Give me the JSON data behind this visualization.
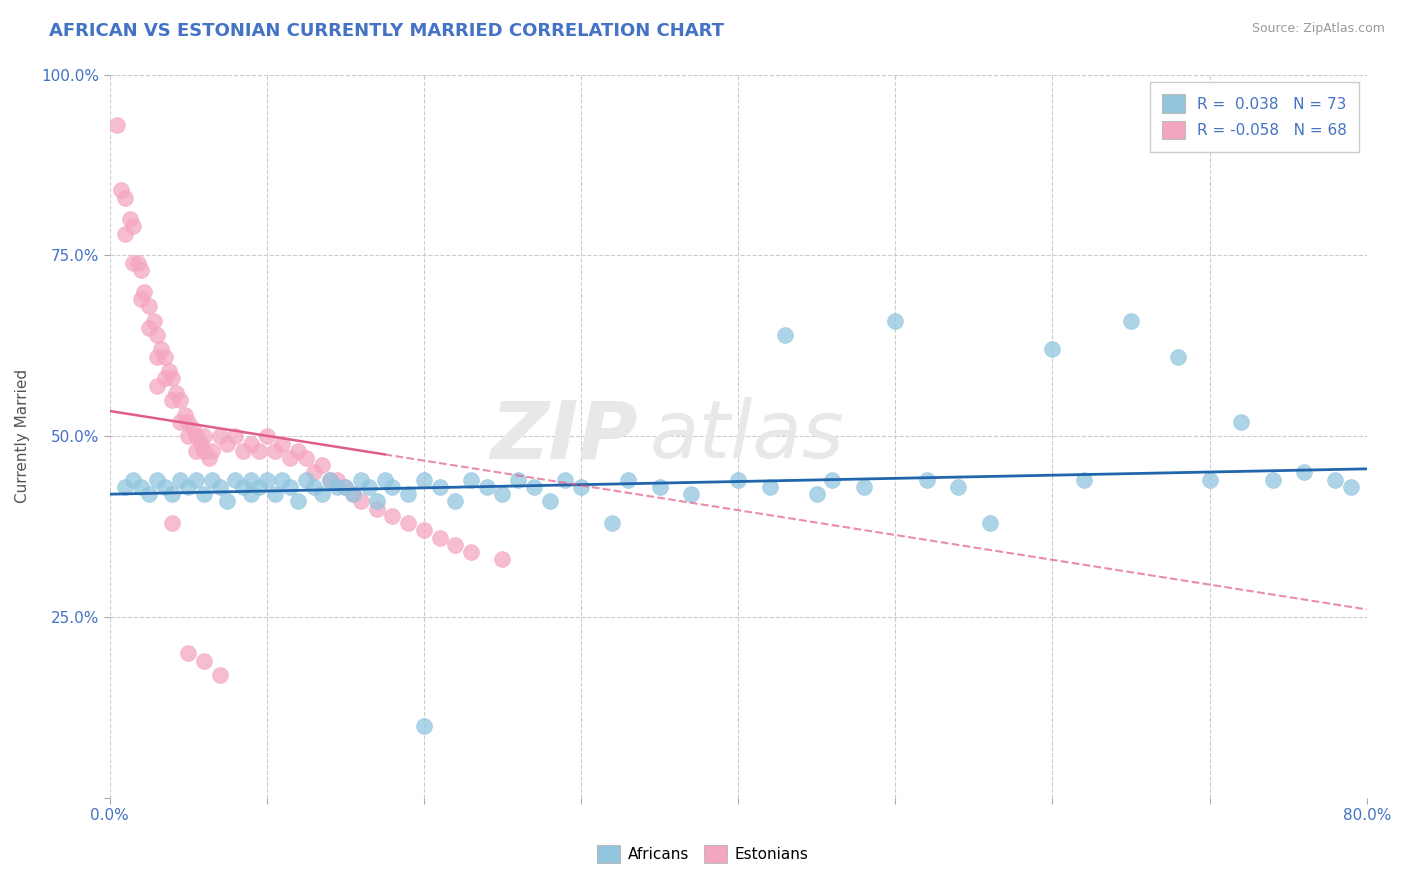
{
  "title": "AFRICAN VS ESTONIAN CURRENTLY MARRIED CORRELATION CHART",
  "source": "Source: ZipAtlas.com",
  "ylabel": "Currently Married",
  "xlim": [
    0.0,
    0.8
  ],
  "ylim": [
    0.0,
    1.0
  ],
  "xticks": [
    0.0,
    0.1,
    0.2,
    0.3,
    0.4,
    0.5,
    0.6,
    0.7,
    0.8
  ],
  "xticklabels": [
    "0.0%",
    "",
    "",
    "",
    "",
    "",
    "",
    "",
    "80.0%"
  ],
  "yticks": [
    0.0,
    0.25,
    0.5,
    0.75,
    1.0
  ],
  "yticklabels": [
    "",
    "25.0%",
    "50.0%",
    "75.0%",
    "100.0%"
  ],
  "blue_R": 0.038,
  "blue_N": 73,
  "pink_R": -0.058,
  "pink_N": 68,
  "blue_color": "#92c5de",
  "pink_color": "#f4a6c0",
  "blue_line_color": "#2166ac",
  "pink_line_color": "#e05c8a",
  "pink_line_style": "--",
  "legend_label_blue": "Africans",
  "legend_label_pink": "Estonians",
  "blue_scatter_x": [
    0.01,
    0.015,
    0.02,
    0.025,
    0.03,
    0.035,
    0.04,
    0.045,
    0.05,
    0.055,
    0.06,
    0.065,
    0.07,
    0.075,
    0.08,
    0.085,
    0.09,
    0.09,
    0.095,
    0.1,
    0.105,
    0.11,
    0.115,
    0.12,
    0.125,
    0.13,
    0.135,
    0.14,
    0.145,
    0.15,
    0.155,
    0.16,
    0.165,
    0.17,
    0.175,
    0.18,
    0.19,
    0.2,
    0.21,
    0.22,
    0.23,
    0.24,
    0.25,
    0.26,
    0.27,
    0.28,
    0.29,
    0.3,
    0.32,
    0.33,
    0.35,
    0.37,
    0.4,
    0.42,
    0.43,
    0.45,
    0.46,
    0.48,
    0.5,
    0.52,
    0.54,
    0.56,
    0.6,
    0.62,
    0.65,
    0.68,
    0.7,
    0.72,
    0.74,
    0.76,
    0.78,
    0.79,
    0.2
  ],
  "blue_scatter_y": [
    0.43,
    0.44,
    0.43,
    0.42,
    0.44,
    0.43,
    0.42,
    0.44,
    0.43,
    0.44,
    0.42,
    0.44,
    0.43,
    0.41,
    0.44,
    0.43,
    0.42,
    0.44,
    0.43,
    0.44,
    0.42,
    0.44,
    0.43,
    0.41,
    0.44,
    0.43,
    0.42,
    0.44,
    0.43,
    0.43,
    0.42,
    0.44,
    0.43,
    0.41,
    0.44,
    0.43,
    0.42,
    0.44,
    0.43,
    0.41,
    0.44,
    0.43,
    0.42,
    0.44,
    0.43,
    0.41,
    0.44,
    0.43,
    0.38,
    0.44,
    0.43,
    0.42,
    0.44,
    0.43,
    0.64,
    0.42,
    0.44,
    0.43,
    0.66,
    0.44,
    0.43,
    0.38,
    0.62,
    0.44,
    0.66,
    0.61,
    0.44,
    0.52,
    0.44,
    0.45,
    0.44,
    0.43,
    0.1
  ],
  "pink_scatter_x": [
    0.005,
    0.007,
    0.01,
    0.01,
    0.013,
    0.015,
    0.015,
    0.018,
    0.02,
    0.02,
    0.022,
    0.025,
    0.025,
    0.028,
    0.03,
    0.03,
    0.033,
    0.035,
    0.035,
    0.038,
    0.04,
    0.04,
    0.042,
    0.045,
    0.045,
    0.048,
    0.05,
    0.05,
    0.053,
    0.055,
    0.055,
    0.058,
    0.06,
    0.06,
    0.063,
    0.065,
    0.07,
    0.075,
    0.08,
    0.085,
    0.09,
    0.095,
    0.1,
    0.105,
    0.11,
    0.115,
    0.12,
    0.125,
    0.13,
    0.135,
    0.14,
    0.145,
    0.15,
    0.155,
    0.16,
    0.17,
    0.18,
    0.19,
    0.2,
    0.21,
    0.22,
    0.23,
    0.25,
    0.03,
    0.04,
    0.05,
    0.06,
    0.07
  ],
  "pink_scatter_y": [
    0.93,
    0.84,
    0.83,
    0.78,
    0.8,
    0.79,
    0.74,
    0.74,
    0.73,
    0.69,
    0.7,
    0.68,
    0.65,
    0.66,
    0.64,
    0.61,
    0.62,
    0.61,
    0.58,
    0.59,
    0.58,
    0.55,
    0.56,
    0.55,
    0.52,
    0.53,
    0.52,
    0.5,
    0.51,
    0.5,
    0.48,
    0.49,
    0.48,
    0.5,
    0.47,
    0.48,
    0.5,
    0.49,
    0.5,
    0.48,
    0.49,
    0.48,
    0.5,
    0.48,
    0.49,
    0.47,
    0.48,
    0.47,
    0.45,
    0.46,
    0.44,
    0.44,
    0.43,
    0.42,
    0.41,
    0.4,
    0.39,
    0.38,
    0.37,
    0.36,
    0.35,
    0.34,
    0.33,
    0.57,
    0.38,
    0.2,
    0.19,
    0.17
  ],
  "blue_line_x": [
    0.0,
    0.8
  ],
  "blue_line_y": [
    0.42,
    0.455
  ],
  "pink_line_x": [
    0.0,
    0.175
  ],
  "pink_line_y": [
    0.535,
    0.475
  ]
}
